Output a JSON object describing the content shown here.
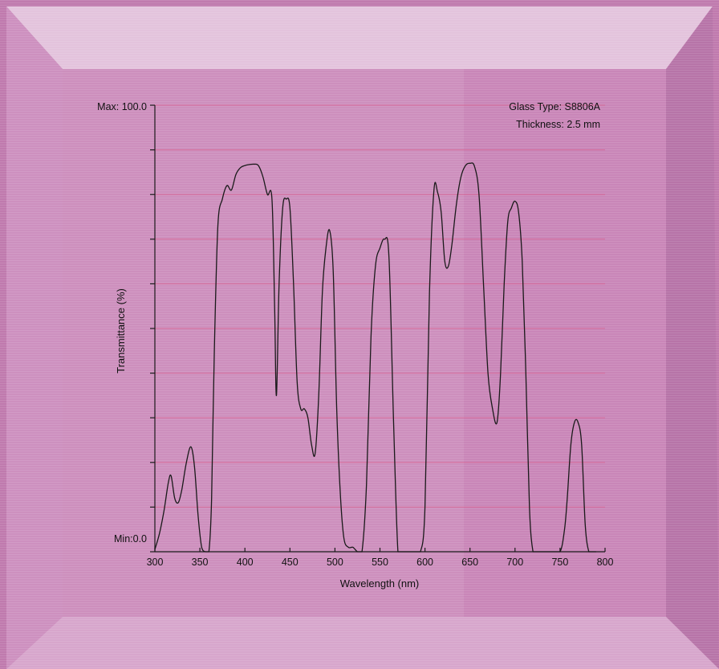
{
  "colors": {
    "frame_outer": "#c07aae",
    "frame_top": "#e3c3dc",
    "frame_side": "#cf94c0",
    "frame_bottom": "#d9a9cd",
    "panel": "#c986b8",
    "panel_light": "#d6a2c9",
    "gridline": "#d9608f",
    "curve": "#1a1a1a",
    "axis": "#1a1a1a"
  },
  "chart_data": {
    "type": "line",
    "title": "",
    "xlabel": "Wavelength (nm)",
    "ylabel": "Transmittance (%)",
    "xlim": [
      300,
      800
    ],
    "ylim": [
      0,
      100
    ],
    "x_ticks": [
      300,
      350,
      400,
      450,
      500,
      550,
      600,
      650,
      700,
      750,
      800
    ],
    "x_tick_labels": [
      "300",
      "350",
      "400",
      "450",
      "500",
      "550",
      "600",
      "650",
      "700",
      "750",
      "800"
    ],
    "y_ticks": [
      0,
      10,
      20,
      30,
      40,
      50,
      60,
      70,
      80,
      90,
      100
    ],
    "y_max_label": "Max: 100.0",
    "y_min_label": "Min:0.0",
    "grid": true,
    "annotations": [
      "Glass Type: S8806A",
      "Thickness: 2.5 mm"
    ],
    "series": [
      {
        "x": [
          300,
          305,
          310,
          315,
          318,
          322,
          326,
          330,
          335,
          340,
          344,
          348,
          352,
          356,
          360,
          363,
          366,
          370,
          375,
          380,
          385,
          390,
          395,
          400,
          405,
          410,
          415,
          420,
          425,
          430,
          433,
          435,
          438,
          442,
          446,
          450,
          454,
          458,
          462,
          466,
          470,
          474,
          478,
          482,
          486,
          490,
          494,
          498,
          502,
          506,
          510,
          515,
          520,
          525,
          530,
          535,
          540,
          545,
          550,
          555,
          560,
          565,
          570,
          575,
          580,
          585,
          590,
          595,
          600,
          605,
          610,
          614,
          618,
          622,
          626,
          630,
          635,
          640,
          645,
          650,
          655,
          660,
          665,
          670,
          675,
          680,
          684,
          688,
          692,
          696,
          700,
          704,
          708,
          712,
          716,
          720,
          724,
          728,
          732,
          740,
          750,
          755,
          758,
          762,
          766,
          770,
          774,
          778,
          782,
          786,
          790
        ],
        "y": [
          0.5,
          4,
          9,
          15.5,
          17,
          12,
          11,
          14,
          20,
          23.5,
          19,
          8,
          1,
          0,
          0,
          12,
          45,
          73,
          79,
          82,
          81,
          84.5,
          86,
          86.5,
          86.7,
          86.8,
          86.5,
          84,
          80,
          79,
          55,
          35,
          60,
          77,
          79,
          77,
          60,
          38,
          32,
          32,
          30,
          24,
          22,
          35,
          58,
          68,
          72,
          63,
          32,
          13,
          3,
          1,
          1,
          0,
          0,
          15,
          48,
          64,
          68,
          70,
          66,
          30,
          0,
          0,
          0,
          0,
          0,
          0,
          10,
          58,
          81,
          80.5,
          76,
          65,
          64,
          69,
          78,
          84,
          86.5,
          87,
          86.3,
          80,
          60,
          40,
          32,
          29,
          40,
          60,
          74,
          77,
          78.5,
          76,
          65,
          40,
          10,
          0,
          0,
          0,
          0,
          0,
          0,
          5,
          12,
          24,
          29,
          29,
          24,
          6,
          0,
          0,
          0
        ]
      }
    ]
  }
}
